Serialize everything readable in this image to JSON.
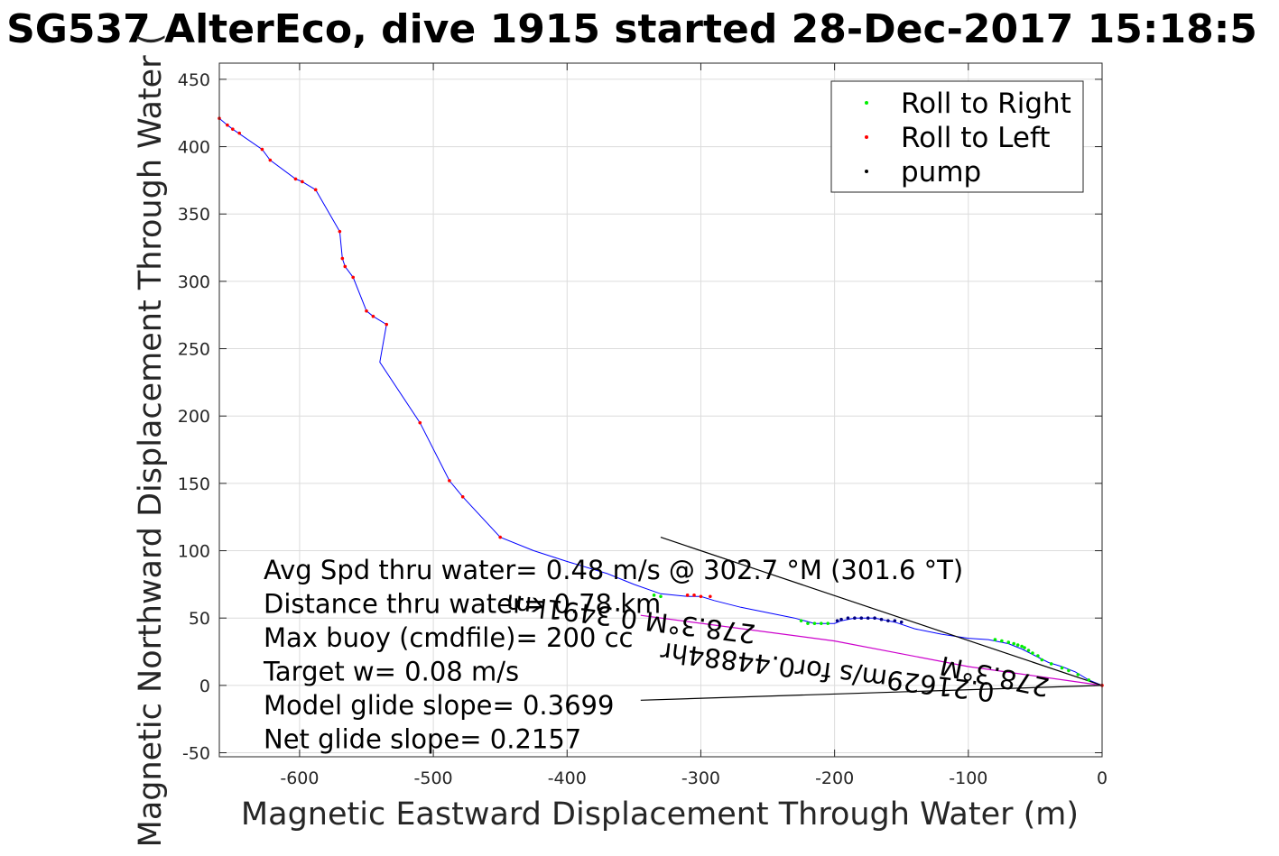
{
  "chart_data": {
    "type": "line",
    "title": "SG537 AlterEco, dive 1915 started 28-Dec-2017 15:18:5",
    "xlabel": "Magnetic Eastward Displacement Through Water (m)",
    "ylabel": "Magnetic Northward Displacement Through Water (",
    "xlim": [
      -660,
      0
    ],
    "ylim": [
      -53,
      462
    ],
    "grid": true,
    "x_ticks": [
      -600,
      -500,
      -400,
      -300,
      -200,
      -100,
      0
    ],
    "y_ticks": [
      -50,
      0,
      50,
      100,
      150,
      200,
      250,
      300,
      350,
      400,
      450
    ],
    "legend": {
      "placement": "top-right",
      "entries": [
        {
          "label": "Roll to Right",
          "color": "#00ee00"
        },
        {
          "label": "Roll to Left",
          "color": "#ff0000"
        },
        {
          "label": "pump",
          "color": "#000000"
        }
      ]
    },
    "series": [
      {
        "style": "track",
        "color": "#0000ff",
        "points": [
          [
            0,
            0
          ],
          [
            -10,
            4
          ],
          [
            -20,
            10
          ],
          [
            -30,
            14
          ],
          [
            -40,
            17
          ],
          [
            -50,
            22
          ],
          [
            -60,
            27
          ],
          [
            -70,
            31
          ],
          [
            -85,
            34
          ],
          [
            -100,
            35
          ],
          [
            -120,
            38
          ],
          [
            -140,
            42
          ],
          [
            -155,
            47
          ],
          [
            -170,
            50
          ],
          [
            -185,
            50
          ],
          [
            -195,
            48
          ],
          [
            -200,
            46
          ],
          [
            -215,
            46
          ],
          [
            -230,
            50
          ],
          [
            -250,
            54
          ],
          [
            -270,
            58
          ],
          [
            -290,
            63
          ],
          [
            -300,
            66
          ],
          [
            -310,
            66
          ],
          [
            -330,
            68
          ],
          [
            -350,
            75
          ],
          [
            -370,
            83
          ],
          [
            -400,
            92
          ],
          [
            -425,
            100
          ],
          [
            -450,
            110
          ],
          [
            -478,
            140
          ],
          [
            -488,
            152
          ],
          [
            -510,
            195
          ],
          [
            -540,
            240
          ],
          [
            -535,
            268
          ],
          [
            -545,
            274
          ],
          [
            -550,
            278
          ],
          [
            -560,
            303
          ],
          [
            -566,
            311
          ],
          [
            -568,
            317
          ],
          [
            -570,
            337
          ],
          [
            -588,
            368
          ],
          [
            -598,
            374
          ],
          [
            -603,
            376
          ],
          [
            -622,
            390
          ],
          [
            -628,
            398
          ],
          [
            -650,
            413
          ],
          [
            -654,
            416
          ],
          [
            -660,
            421
          ]
        ]
      },
      {
        "style": "line",
        "color": "#cc00cc",
        "points": [
          [
            -345,
            52
          ],
          [
            -200,
            33
          ],
          [
            -100,
            14
          ],
          [
            0,
            0
          ]
        ]
      },
      {
        "style": "line",
        "color": "#000000",
        "points": [
          [
            -330,
            110
          ],
          [
            0,
            0
          ]
        ]
      },
      {
        "style": "line",
        "color": "#000000",
        "points": [
          [
            -345,
            -11
          ],
          [
            0,
            0
          ]
        ]
      },
      {
        "name": "Roll to Right",
        "style": "markers",
        "color": "#00ee00",
        "points": [
          [
            -10,
            4
          ],
          [
            -18,
            8
          ],
          [
            -25,
            11
          ],
          [
            -30,
            13
          ],
          [
            -38,
            16
          ],
          [
            -45,
            19
          ],
          [
            -48,
            22
          ],
          [
            -52,
            24
          ],
          [
            -55,
            26
          ],
          [
            -58,
            28
          ],
          [
            -60,
            29
          ],
          [
            -63,
            30
          ],
          [
            -66,
            31
          ],
          [
            -70,
            32
          ],
          [
            -75,
            33
          ],
          [
            -80,
            34
          ],
          [
            -205,
            46
          ],
          [
            -210,
            46
          ],
          [
            -215,
            46
          ],
          [
            -220,
            46
          ],
          [
            -225,
            48
          ],
          [
            -330,
            66
          ],
          [
            -335,
            67
          ]
        ]
      },
      {
        "name": "Roll to Left",
        "style": "markers",
        "color": "#ff0000",
        "points": [
          [
            0,
            0
          ],
          [
            -293,
            66
          ],
          [
            -300,
            66
          ],
          [
            -305,
            67
          ],
          [
            -310,
            67
          ],
          [
            -450,
            110
          ],
          [
            -478,
            140
          ],
          [
            -488,
            152
          ],
          [
            -510,
            195
          ],
          [
            -535,
            268
          ],
          [
            -545,
            274
          ],
          [
            -550,
            278
          ],
          [
            -560,
            303
          ],
          [
            -566,
            311
          ],
          [
            -568,
            317
          ],
          [
            -570,
            337
          ],
          [
            -588,
            368
          ],
          [
            -598,
            374
          ],
          [
            -603,
            376
          ],
          [
            -622,
            390
          ],
          [
            -628,
            398
          ],
          [
            -645,
            410
          ],
          [
            -650,
            413
          ],
          [
            -654,
            416
          ],
          [
            -660,
            421
          ]
        ]
      },
      {
        "name": "pump",
        "style": "markers",
        "color": "#000080",
        "points": [
          [
            -150,
            47
          ],
          [
            -155,
            48
          ],
          [
            -160,
            48
          ],
          [
            -165,
            49
          ],
          [
            -170,
            50
          ],
          [
            -175,
            50
          ],
          [
            -180,
            50
          ],
          [
            -185,
            50
          ],
          [
            -190,
            50
          ],
          [
            -195,
            49
          ],
          [
            -198,
            48
          ]
        ]
      }
    ],
    "annotations": [
      "Avg Spd thru water=  0.48 m/s @ 302.7 °M (301.6 °T)",
      "Distance thru water=  0.78 km",
      "Max buoy (cmdfile)= 200 cc",
      "Target w= 0.08 m/s",
      "Model glide slope= 0.3699",
      "Net glide slope= 0.2157"
    ],
    "flipped_annotations": [
      "278.3°M  0.3491km",
      "0.21629m/s for0.44884hr",
      "278.3°M"
    ]
  }
}
